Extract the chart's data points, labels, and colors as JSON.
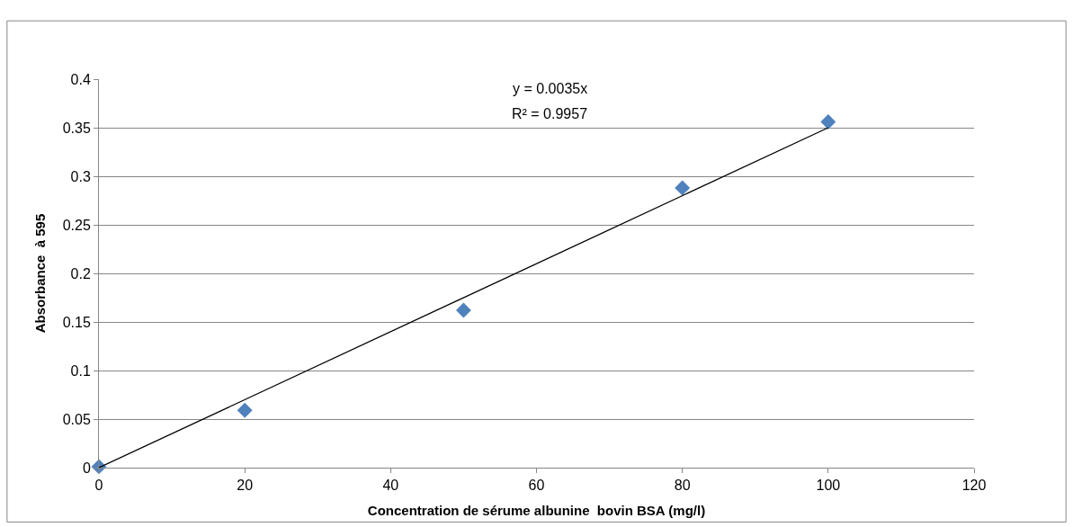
{
  "chart_data": {
    "type": "scatter",
    "xlabel": "Concentration de sérume albunine  bovin BSA (mg/l)",
    "ylabel": "Absorbance  à 595",
    "x": [
      0,
      20,
      50,
      80,
      100
    ],
    "series": [
      {
        "color": "#4f81bd",
        "values": [
          0.001,
          0.059,
          0.162,
          0.288,
          0.356
        ],
        "marker": "diamond"
      },
      {
        "type": "line",
        "color": "#000000",
        "x": [
          0,
          100
        ],
        "values": [
          0,
          0.35
        ],
        "marker": "none",
        "line_style": "solid"
      }
    ],
    "annotations": [
      "y = 0.0035x",
      "R² = 0.9957"
    ],
    "xlim": [
      0,
      120
    ],
    "xticks": [
      0,
      20,
      40,
      60,
      80,
      100,
      120
    ],
    "ylim": [
      0,
      0.4
    ],
    "yticks": [
      0,
      0.05,
      0.1,
      0.15,
      0.2,
      0.25,
      0.3,
      0.35,
      0.4
    ],
    "grid": "y"
  }
}
